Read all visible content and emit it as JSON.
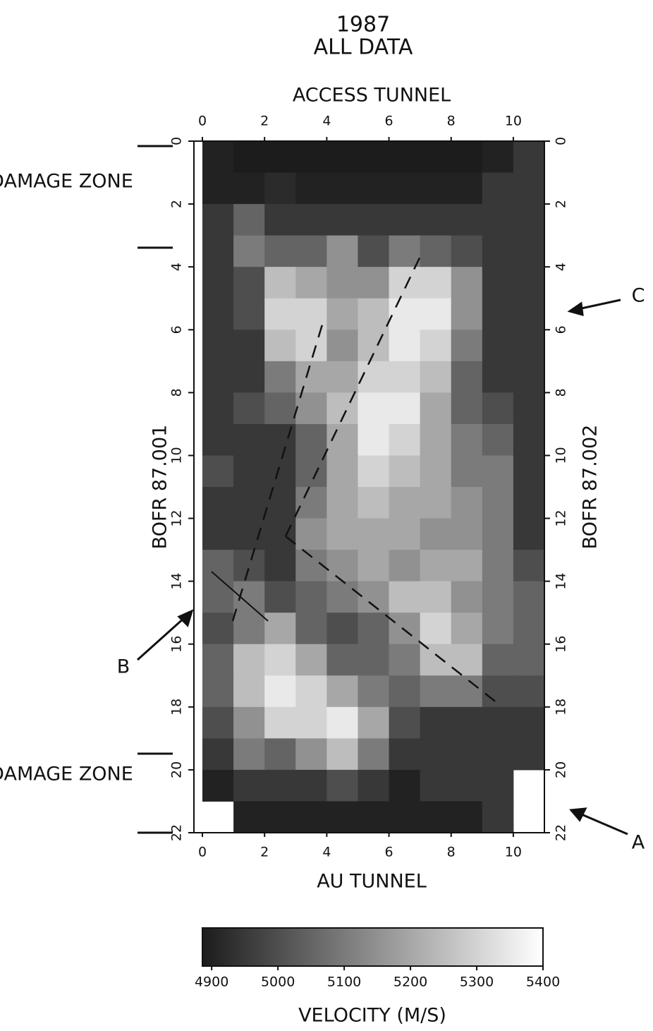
{
  "chart_data": {
    "type": "heatmap",
    "title": "1987",
    "subtitle": "ALL DATA",
    "x_label_top": "ACCESS TUNNEL",
    "x_label": "AU TUNNEL",
    "y_label": "BOFR 87.001",
    "y2_label": "BOFR 87.002",
    "xlim": [
      0,
      11
    ],
    "xticks": [
      0,
      2,
      4,
      6,
      8,
      10
    ],
    "ylim": [
      0,
      22
    ],
    "yticks": [
      0,
      2,
      4,
      6,
      8,
      10,
      12,
      14,
      16,
      18,
      20,
      22
    ],
    "x": [
      0.5,
      1.5,
      2.5,
      3.5,
      4.5,
      5.5,
      6.5,
      7.5,
      8.5,
      9.5,
      10.5
    ],
    "y": [
      0.5,
      1.5,
      2.5,
      3.5,
      4.5,
      5.5,
      6.5,
      7.5,
      8.5,
      9.5,
      10.5,
      11.5,
      12.5,
      13.5,
      14.5,
      15.5,
      16.5,
      17.5,
      18.5,
      19.5,
      20.5,
      21.5
    ],
    "z": [
      [
        4900,
        4880,
        4880,
        4880,
        4880,
        4880,
        4880,
        4880,
        4880,
        4900,
        4950
      ],
      [
        4900,
        4900,
        4920,
        4900,
        4900,
        4900,
        4900,
        4900,
        4900,
        4950,
        4950
      ],
      [
        4950,
        5050,
        4950,
        4950,
        4950,
        4950,
        4950,
        4950,
        4950,
        4950,
        4950
      ],
      [
        4950,
        5100,
        5050,
        5050,
        5150,
        5000,
        5100,
        5050,
        5000,
        4950,
        4950
      ],
      [
        4950,
        5000,
        5250,
        5200,
        5150,
        5150,
        5300,
        5300,
        5150,
        4950,
        4950
      ],
      [
        4950,
        5000,
        5300,
        5300,
        5200,
        5250,
        5350,
        5350,
        5150,
        4950,
        4950
      ],
      [
        4950,
        4950,
        5250,
        5300,
        5150,
        5250,
        5350,
        5300,
        5100,
        4950,
        4950
      ],
      [
        4950,
        4950,
        5100,
        5200,
        5200,
        5300,
        5300,
        5250,
        5050,
        4950,
        4950
      ],
      [
        4950,
        5000,
        5050,
        5150,
        5250,
        5350,
        5350,
        5200,
        5050,
        5000,
        4950
      ],
      [
        4950,
        4950,
        4950,
        5050,
        5200,
        5350,
        5300,
        5200,
        5100,
        5050,
        4950
      ],
      [
        5000,
        4950,
        4950,
        5050,
        5200,
        5300,
        5250,
        5200,
        5100,
        5100,
        4950
      ],
      [
        4950,
        4950,
        4950,
        5100,
        5200,
        5250,
        5200,
        5200,
        5150,
        5100,
        4950
      ],
      [
        4950,
        4950,
        4950,
        5150,
        5200,
        5200,
        5200,
        5150,
        5150,
        5100,
        4950
      ],
      [
        5050,
        5000,
        4950,
        5100,
        5150,
        5200,
        5150,
        5200,
        5200,
        5100,
        5000
      ],
      [
        5050,
        5100,
        5000,
        5050,
        5100,
        5150,
        5250,
        5250,
        5150,
        5100,
        5050
      ],
      [
        5000,
        5100,
        5200,
        5050,
        5000,
        5050,
        5150,
        5300,
        5200,
        5100,
        5050
      ],
      [
        5050,
        5250,
        5300,
        5200,
        5050,
        5050,
        5100,
        5250,
        5250,
        5050,
        5050
      ],
      [
        5050,
        5250,
        5350,
        5300,
        5200,
        5100,
        5050,
        5100,
        5100,
        5000,
        5000
      ],
      [
        5000,
        5150,
        5300,
        5300,
        5350,
        5200,
        5000,
        4950,
        4950,
        4950,
        4950
      ],
      [
        4950,
        5100,
        5050,
        5150,
        5250,
        5100,
        4950,
        4950,
        4950,
        4950,
        4950
      ],
      [
        4900,
        4950,
        4950,
        4950,
        5000,
        4950,
        4900,
        4950,
        4950,
        4950,
        null
      ],
      [
        null,
        4900,
        4900,
        4900,
        4900,
        4900,
        4900,
        4900,
        4900,
        4950,
        null
      ]
    ],
    "colormap": [
      "#1c1c1c",
      "#ffffff"
    ],
    "colorbar": {
      "label": "VELOCITY (M/S)",
      "clim": [
        4886,
        5400
      ],
      "ticks": [
        4900,
        5000,
        5100,
        5200,
        5300,
        5400
      ]
    },
    "annotations": [
      "DAMAGE ZONE",
      "DAMAGE ZONE",
      "A",
      "B",
      "C"
    ]
  }
}
